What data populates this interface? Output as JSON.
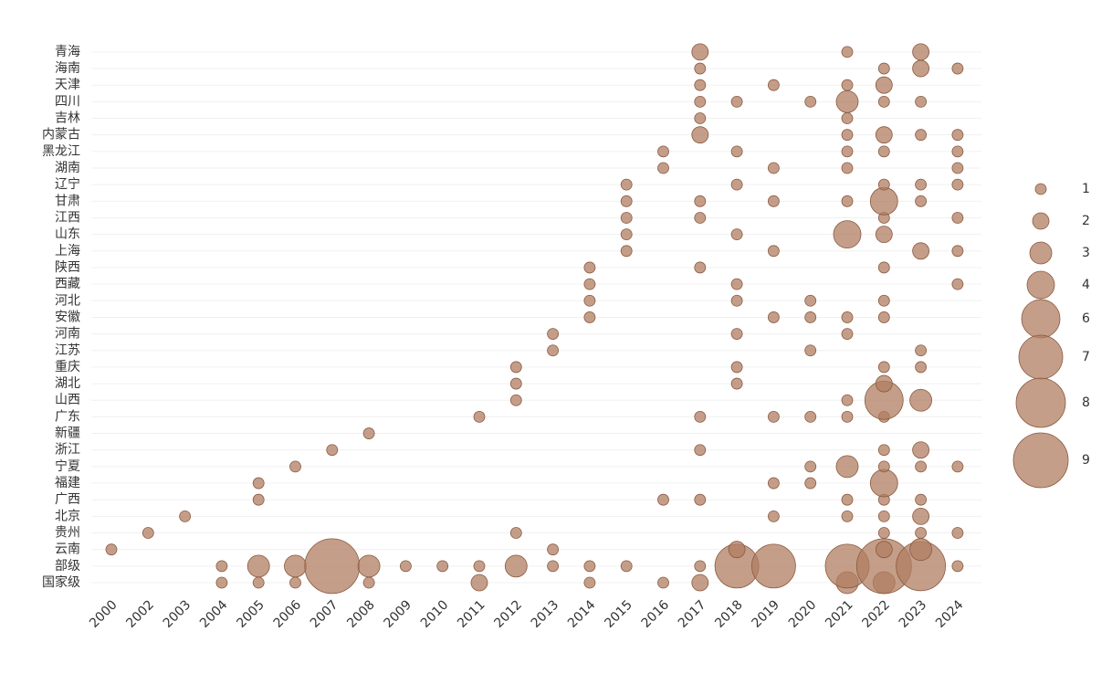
{
  "chart_data": {
    "type": "bubble",
    "x_categories": [
      "2000",
      "2002",
      "2003",
      "2004",
      "2005",
      "2006",
      "2007",
      "2008",
      "2009",
      "2010",
      "2011",
      "2012",
      "2013",
      "2014",
      "2015",
      "2016",
      "2017",
      "2018",
      "2019",
      "2020",
      "2021",
      "2022",
      "2023",
      "2024"
    ],
    "y_categories": [
      "国家级",
      "部级",
      "云南",
      "贵州",
      "北京",
      "广西",
      "福建",
      "宁夏",
      "浙江",
      "新疆",
      "广东",
      "山西",
      "湖北",
      "重庆",
      "江苏",
      "河南",
      "安徽",
      "河北",
      "西藏",
      "陕西",
      "上海",
      "山东",
      "江西",
      "甘肃",
      "辽宁",
      "湖南",
      "黑龙江",
      "内蒙古",
      "吉林",
      "四川",
      "天津",
      "海南",
      "青海"
    ],
    "color": "#b07d62",
    "grid": true,
    "size_legend": [
      1,
      2,
      3,
      4,
      6,
      7,
      8,
      9
    ],
    "points": [
      {
        "x": "2004",
        "y": "国家级",
        "size": 1
      },
      {
        "x": "2005",
        "y": "国家级",
        "size": 1
      },
      {
        "x": "2006",
        "y": "国家级",
        "size": 1
      },
      {
        "x": "2008",
        "y": "国家级",
        "size": 1
      },
      {
        "x": "2011",
        "y": "国家级",
        "size": 2
      },
      {
        "x": "2014",
        "y": "国家级",
        "size": 1
      },
      {
        "x": "2016",
        "y": "国家级",
        "size": 1
      },
      {
        "x": "2017",
        "y": "国家级",
        "size": 2
      },
      {
        "x": "2021",
        "y": "国家级",
        "size": 3
      },
      {
        "x": "2022",
        "y": "国家级",
        "size": 3
      },
      {
        "x": "2004",
        "y": "部级",
        "size": 1
      },
      {
        "x": "2005",
        "y": "部级",
        "size": 3
      },
      {
        "x": "2006",
        "y": "部级",
        "size": 3
      },
      {
        "x": "2007",
        "y": "部级",
        "size": 9
      },
      {
        "x": "2008",
        "y": "部级",
        "size": 3
      },
      {
        "x": "2009",
        "y": "部级",
        "size": 1
      },
      {
        "x": "2010",
        "y": "部级",
        "size": 1
      },
      {
        "x": "2011",
        "y": "部级",
        "size": 1
      },
      {
        "x": "2012",
        "y": "部级",
        "size": 3
      },
      {
        "x": "2013",
        "y": "部级",
        "size": 1
      },
      {
        "x": "2014",
        "y": "部级",
        "size": 1
      },
      {
        "x": "2015",
        "y": "部级",
        "size": 1
      },
      {
        "x": "2017",
        "y": "部级",
        "size": 1
      },
      {
        "x": "2018",
        "y": "部级",
        "size": 7
      },
      {
        "x": "2019",
        "y": "部级",
        "size": 7
      },
      {
        "x": "2021",
        "y": "部级",
        "size": 7
      },
      {
        "x": "2022",
        "y": "部级",
        "size": 9
      },
      {
        "x": "2023",
        "y": "部级",
        "size": 8
      },
      {
        "x": "2024",
        "y": "部级",
        "size": 1
      },
      {
        "x": "2000",
        "y": "云南",
        "size": 1
      },
      {
        "x": "2013",
        "y": "云南",
        "size": 1
      },
      {
        "x": "2018",
        "y": "云南",
        "size": 2
      },
      {
        "x": "2022",
        "y": "云南",
        "size": 2
      },
      {
        "x": "2023",
        "y": "云南",
        "size": 3
      },
      {
        "x": "2002",
        "y": "贵州",
        "size": 1
      },
      {
        "x": "2012",
        "y": "贵州",
        "size": 1
      },
      {
        "x": "2022",
        "y": "贵州",
        "size": 1
      },
      {
        "x": "2023",
        "y": "贵州",
        "size": 1
      },
      {
        "x": "2024",
        "y": "贵州",
        "size": 1
      },
      {
        "x": "2003",
        "y": "北京",
        "size": 1
      },
      {
        "x": "2019",
        "y": "北京",
        "size": 1
      },
      {
        "x": "2021",
        "y": "北京",
        "size": 1
      },
      {
        "x": "2022",
        "y": "北京",
        "size": 1
      },
      {
        "x": "2023",
        "y": "北京",
        "size": 2
      },
      {
        "x": "2005",
        "y": "广西",
        "size": 1
      },
      {
        "x": "2016",
        "y": "广西",
        "size": 1
      },
      {
        "x": "2017",
        "y": "广西",
        "size": 1
      },
      {
        "x": "2021",
        "y": "广西",
        "size": 1
      },
      {
        "x": "2022",
        "y": "广西",
        "size": 1
      },
      {
        "x": "2023",
        "y": "广西",
        "size": 1
      },
      {
        "x": "2005",
        "y": "福建",
        "size": 1
      },
      {
        "x": "2019",
        "y": "福建",
        "size": 1
      },
      {
        "x": "2020",
        "y": "福建",
        "size": 1
      },
      {
        "x": "2022",
        "y": "福建",
        "size": 4
      },
      {
        "x": "2006",
        "y": "宁夏",
        "size": 1
      },
      {
        "x": "2020",
        "y": "宁夏",
        "size": 1
      },
      {
        "x": "2021",
        "y": "宁夏",
        "size": 3
      },
      {
        "x": "2022",
        "y": "宁夏",
        "size": 1
      },
      {
        "x": "2023",
        "y": "宁夏",
        "size": 1
      },
      {
        "x": "2024",
        "y": "宁夏",
        "size": 1
      },
      {
        "x": "2007",
        "y": "浙江",
        "size": 1
      },
      {
        "x": "2017",
        "y": "浙江",
        "size": 1
      },
      {
        "x": "2022",
        "y": "浙江",
        "size": 1
      },
      {
        "x": "2023",
        "y": "浙江",
        "size": 2
      },
      {
        "x": "2008",
        "y": "新疆",
        "size": 1
      },
      {
        "x": "2011",
        "y": "广东",
        "size": 1
      },
      {
        "x": "2017",
        "y": "广东",
        "size": 1
      },
      {
        "x": "2019",
        "y": "广东",
        "size": 1
      },
      {
        "x": "2020",
        "y": "广东",
        "size": 1
      },
      {
        "x": "2021",
        "y": "广东",
        "size": 1
      },
      {
        "x": "2022",
        "y": "广东",
        "size": 1
      },
      {
        "x": "2012",
        "y": "山西",
        "size": 1
      },
      {
        "x": "2021",
        "y": "山西",
        "size": 1
      },
      {
        "x": "2022",
        "y": "山西",
        "size": 6
      },
      {
        "x": "2023",
        "y": "山西",
        "size": 3
      },
      {
        "x": "2012",
        "y": "湖北",
        "size": 1
      },
      {
        "x": "2018",
        "y": "湖北",
        "size": 1
      },
      {
        "x": "2022",
        "y": "湖北",
        "size": 2
      },
      {
        "x": "2012",
        "y": "重庆",
        "size": 1
      },
      {
        "x": "2018",
        "y": "重庆",
        "size": 1
      },
      {
        "x": "2022",
        "y": "重庆",
        "size": 1
      },
      {
        "x": "2023",
        "y": "重庆",
        "size": 1
      },
      {
        "x": "2013",
        "y": "江苏",
        "size": 1
      },
      {
        "x": "2020",
        "y": "江苏",
        "size": 1
      },
      {
        "x": "2023",
        "y": "江苏",
        "size": 1
      },
      {
        "x": "2013",
        "y": "河南",
        "size": 1
      },
      {
        "x": "2018",
        "y": "河南",
        "size": 1
      },
      {
        "x": "2021",
        "y": "河南",
        "size": 1
      },
      {
        "x": "2014",
        "y": "安徽",
        "size": 1
      },
      {
        "x": "2019",
        "y": "安徽",
        "size": 1
      },
      {
        "x": "2020",
        "y": "安徽",
        "size": 1
      },
      {
        "x": "2021",
        "y": "安徽",
        "size": 1
      },
      {
        "x": "2022",
        "y": "安徽",
        "size": 1
      },
      {
        "x": "2014",
        "y": "河北",
        "size": 1
      },
      {
        "x": "2018",
        "y": "河北",
        "size": 1
      },
      {
        "x": "2020",
        "y": "河北",
        "size": 1
      },
      {
        "x": "2022",
        "y": "河北",
        "size": 1
      },
      {
        "x": "2014",
        "y": "西藏",
        "size": 1
      },
      {
        "x": "2018",
        "y": "西藏",
        "size": 1
      },
      {
        "x": "2024",
        "y": "西藏",
        "size": 1
      },
      {
        "x": "2014",
        "y": "陕西",
        "size": 1
      },
      {
        "x": "2017",
        "y": "陕西",
        "size": 1
      },
      {
        "x": "2022",
        "y": "陕西",
        "size": 1
      },
      {
        "x": "2015",
        "y": "上海",
        "size": 1
      },
      {
        "x": "2019",
        "y": "上海",
        "size": 1
      },
      {
        "x": "2023",
        "y": "上海",
        "size": 2
      },
      {
        "x": "2024",
        "y": "上海",
        "size": 1
      },
      {
        "x": "2015",
        "y": "山东",
        "size": 1
      },
      {
        "x": "2018",
        "y": "山东",
        "size": 1
      },
      {
        "x": "2021",
        "y": "山东",
        "size": 4
      },
      {
        "x": "2022",
        "y": "山东",
        "size": 2
      },
      {
        "x": "2015",
        "y": "江西",
        "size": 1
      },
      {
        "x": "2017",
        "y": "江西",
        "size": 1
      },
      {
        "x": "2022",
        "y": "江西",
        "size": 1
      },
      {
        "x": "2024",
        "y": "江西",
        "size": 1
      },
      {
        "x": "2015",
        "y": "甘肃",
        "size": 1
      },
      {
        "x": "2017",
        "y": "甘肃",
        "size": 1
      },
      {
        "x": "2019",
        "y": "甘肃",
        "size": 1
      },
      {
        "x": "2021",
        "y": "甘肃",
        "size": 1
      },
      {
        "x": "2022",
        "y": "甘肃",
        "size": 4
      },
      {
        "x": "2023",
        "y": "甘肃",
        "size": 1
      },
      {
        "x": "2015",
        "y": "辽宁",
        "size": 1
      },
      {
        "x": "2018",
        "y": "辽宁",
        "size": 1
      },
      {
        "x": "2022",
        "y": "辽宁",
        "size": 1
      },
      {
        "x": "2023",
        "y": "辽宁",
        "size": 1
      },
      {
        "x": "2024",
        "y": "辽宁",
        "size": 1
      },
      {
        "x": "2016",
        "y": "湖南",
        "size": 1
      },
      {
        "x": "2019",
        "y": "湖南",
        "size": 1
      },
      {
        "x": "2021",
        "y": "湖南",
        "size": 1
      },
      {
        "x": "2024",
        "y": "湖南",
        "size": 1
      },
      {
        "x": "2016",
        "y": "黑龙江",
        "size": 1
      },
      {
        "x": "2018",
        "y": "黑龙江",
        "size": 1
      },
      {
        "x": "2021",
        "y": "黑龙江",
        "size": 1
      },
      {
        "x": "2022",
        "y": "黑龙江",
        "size": 1
      },
      {
        "x": "2024",
        "y": "黑龙江",
        "size": 1
      },
      {
        "x": "2017",
        "y": "内蒙古",
        "size": 2
      },
      {
        "x": "2021",
        "y": "内蒙古",
        "size": 1
      },
      {
        "x": "2022",
        "y": "内蒙古",
        "size": 2
      },
      {
        "x": "2023",
        "y": "内蒙古",
        "size": 1
      },
      {
        "x": "2024",
        "y": "内蒙古",
        "size": 1
      },
      {
        "x": "2017",
        "y": "吉林",
        "size": 1
      },
      {
        "x": "2021",
        "y": "吉林",
        "size": 1
      },
      {
        "x": "2017",
        "y": "四川",
        "size": 1
      },
      {
        "x": "2018",
        "y": "四川",
        "size": 1
      },
      {
        "x": "2020",
        "y": "四川",
        "size": 1
      },
      {
        "x": "2021",
        "y": "四川",
        "size": 3
      },
      {
        "x": "2022",
        "y": "四川",
        "size": 1
      },
      {
        "x": "2023",
        "y": "四川",
        "size": 1
      },
      {
        "x": "2017",
        "y": "天津",
        "size": 1
      },
      {
        "x": "2019",
        "y": "天津",
        "size": 1
      },
      {
        "x": "2021",
        "y": "天津",
        "size": 1
      },
      {
        "x": "2022",
        "y": "天津",
        "size": 2
      },
      {
        "x": "2017",
        "y": "海南",
        "size": 1
      },
      {
        "x": "2022",
        "y": "海南",
        "size": 1
      },
      {
        "x": "2023",
        "y": "海南",
        "size": 2
      },
      {
        "x": "2024",
        "y": "海南",
        "size": 1
      },
      {
        "x": "2017",
        "y": "青海",
        "size": 2
      },
      {
        "x": "2021",
        "y": "青海",
        "size": 1
      },
      {
        "x": "2023",
        "y": "青海",
        "size": 2
      }
    ]
  }
}
